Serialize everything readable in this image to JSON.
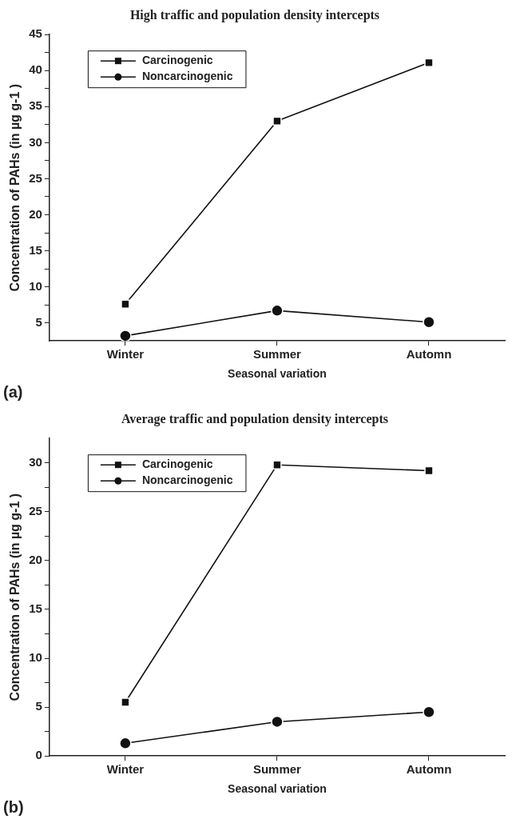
{
  "chart_data": [
    {
      "type": "line",
      "title": "High traffic and population density intercepts",
      "xlabel": "Seasonal variation",
      "ylabel": "Concentration of PAHs (in µg g-1 )",
      "categories": [
        "Winter",
        "Summer",
        "Automn"
      ],
      "series": [
        {
          "name": "Carcinogenic",
          "color": "#111111",
          "marker": "square",
          "values": [
            7.6,
            33,
            41.1
          ]
        },
        {
          "name": "Noncarcinogenic",
          "color": "#111111",
          "marker": "circle",
          "values": [
            3.2,
            6.7,
            5.1
          ]
        }
      ],
      "ylim": [
        2.5,
        45
      ],
      "yticks": [
        5,
        {
          "value": 7.5,
          "label": null
        },
        10,
        {
          "value": 12.5,
          "label": null
        },
        15,
        {
          "value": 17.5,
          "label": null
        },
        20,
        {
          "value": 22.5,
          "label": null
        },
        25,
        {
          "value": 27.5,
          "label": null
        },
        30,
        {
          "value": 32.5,
          "label": null
        },
        35,
        {
          "value": 37.5,
          "label": null
        },
        40,
        {
          "value": 42.5,
          "label": null
        },
        45
      ],
      "grid": false,
      "legend": "top left",
      "line_style": "solid",
      "annotations": [
        "(a)"
      ]
    },
    {
      "type": "line",
      "title": "Average traffic and population density intercepts",
      "xlabel": "Seasonal variation",
      "ylabel": "Concentration of PAHs (in µg g-1 )",
      "categories": [
        "Winter",
        "Summer",
        "Automn"
      ],
      "series": [
        {
          "name": "Carcinogenic",
          "color": "#111111",
          "marker": "square",
          "values": [
            5.5,
            29.8,
            29.2
          ]
        },
        {
          "name": "Noncarcinogenic",
          "color": "#111111",
          "marker": "circle",
          "values": [
            1.3,
            3.5,
            4.5
          ]
        }
      ],
      "ylim": [
        0,
        32.5
      ],
      "yticks": [
        0,
        {
          "value": 2.5,
          "label": null
        },
        5,
        {
          "value": 7.5,
          "label": null
        },
        10,
        {
          "value": 12.5,
          "label": null
        },
        15,
        {
          "value": 17.5,
          "label": null
        },
        20,
        {
          "value": 22.5,
          "label": null
        },
        25,
        {
          "value": 27.5,
          "label": null
        },
        30
      ],
      "grid": false,
      "legend": "top left",
      "line_style": "solid",
      "annotations": [
        "(b)"
      ]
    }
  ]
}
